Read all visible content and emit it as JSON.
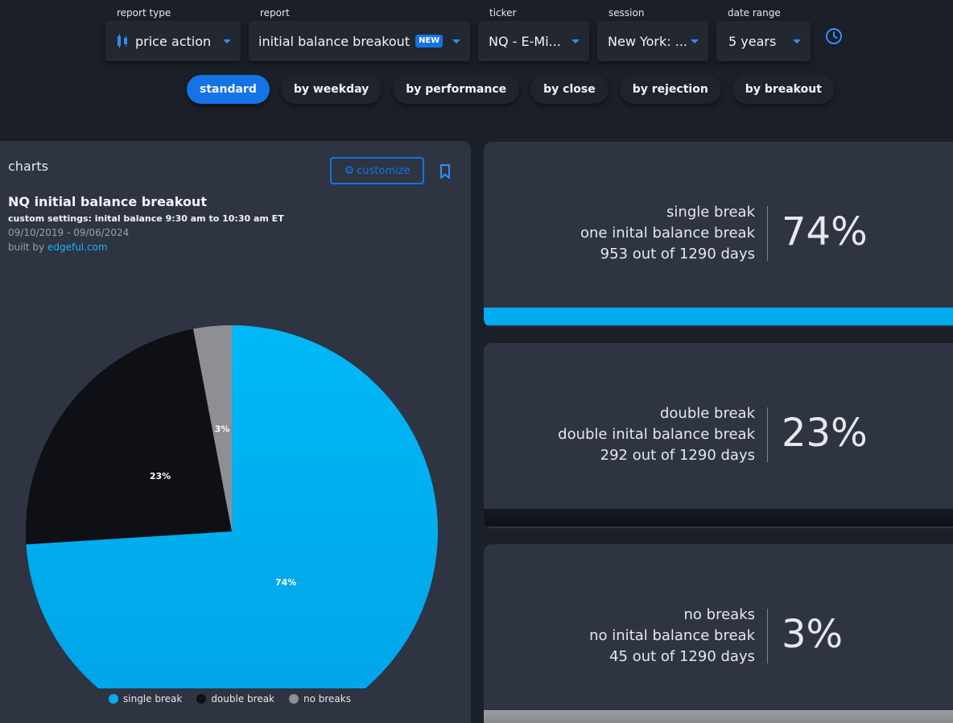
{
  "filters": [
    {
      "label": "report type",
      "value": "price action"
    },
    {
      "label": "report",
      "value": "initial balance breakout",
      "badge": "NEW"
    },
    {
      "label": "ticker",
      "value": "NQ - E-Mi..."
    },
    {
      "label": "session",
      "value": "New York: ..."
    },
    {
      "label": "date range",
      "value": "5 years"
    }
  ],
  "tabs": [
    "standard",
    "by weekday",
    "by performance",
    "by close",
    "by rejection",
    "by breakout"
  ],
  "active_tab": "standard",
  "panel": {
    "title": "charts",
    "customize_label": "customize",
    "chart_title": "NQ initial balance breakout",
    "settings": "custom settings: inital balance 9:30 am to 10:30 am ET",
    "date_span": "09/10/2019 - 09/06/2024",
    "built_by_prefix": "built by",
    "built_by_link": "edgeful.com"
  },
  "chart_data": {
    "type": "pie",
    "slices": [
      {
        "label": "single break",
        "value": 74,
        "color": "#00aeef"
      },
      {
        "label": "double break",
        "value": 23,
        "color": "#0e1015"
      },
      {
        "label": "no breaks",
        "value": 3,
        "color": "#8e8f93"
      }
    ],
    "data_labels": [
      "74%",
      "23%",
      "3%"
    ],
    "legend_position": "bottom"
  },
  "stats": [
    {
      "line1": "single break",
      "line2": "one inital balance break",
      "line3": "953 out of 1290 days",
      "pct": "74%",
      "bar_color": "#00aeef"
    },
    {
      "line1": "double break",
      "line2": "double inital balance break",
      "line3": "292 out of 1290 days",
      "pct": "23%",
      "bar_color": "#0e1015"
    },
    {
      "line1": "no breaks",
      "line2": "no inital balance break",
      "line3": "45 out of 1290 days",
      "pct": "3%",
      "bar_color": "#8e8f93"
    }
  ],
  "colors": {
    "accent": "#1473e6",
    "cyan": "#00aeef",
    "panel": "#2e3442",
    "background": "#1b1f27"
  },
  "icons": [
    "candlestick-icon",
    "chevron-down-icon",
    "clock-icon",
    "gear-icon",
    "bookmark-icon"
  ]
}
